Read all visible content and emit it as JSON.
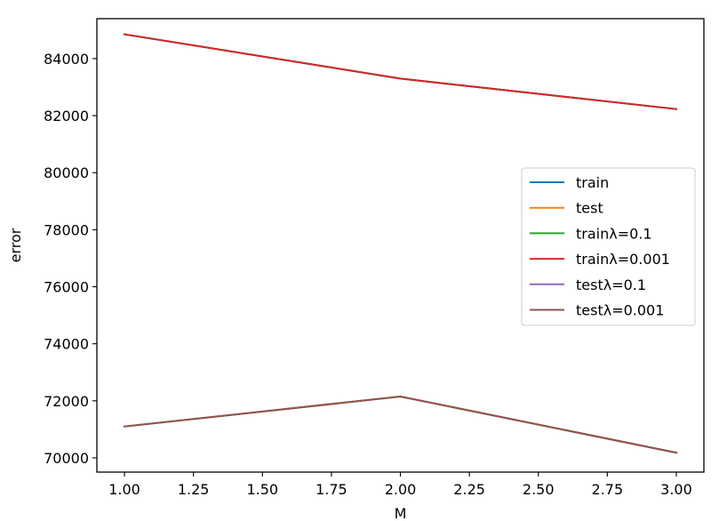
{
  "chart_data": {
    "type": "line",
    "title": "",
    "xlabel": "M",
    "ylabel": "error",
    "x": [
      1,
      2,
      3
    ],
    "xlim": [
      0.9,
      3.1
    ],
    "ylim": [
      69500,
      85400
    ],
    "xticks": [
      1.0,
      1.25,
      1.5,
      1.75,
      2.0,
      2.25,
      2.5,
      2.75,
      3.0
    ],
    "xtick_labels": [
      "1.00",
      "1.25",
      "1.50",
      "1.75",
      "2.00",
      "2.25",
      "2.50",
      "2.75",
      "3.00"
    ],
    "yticks": [
      70000,
      72000,
      74000,
      76000,
      78000,
      80000,
      82000,
      84000
    ],
    "ytick_labels": [
      "70000",
      "72000",
      "74000",
      "76000",
      "78000",
      "80000",
      "82000",
      "84000"
    ],
    "grid": false,
    "legend_position": "center-right",
    "series": [
      {
        "name": "train",
        "color": "#1f77b4",
        "values": [
          84850,
          83300,
          82230
        ]
      },
      {
        "name": "test",
        "color": "#ff7f0e",
        "values": [
          71100,
          72150,
          70180
        ]
      },
      {
        "name": "trainλ=0.1",
        "color": "#2ca02c",
        "values": [
          84850,
          83300,
          82230
        ]
      },
      {
        "name": "trainλ=0.001",
        "color": "#d62728",
        "values": [
          84850,
          83300,
          82230
        ]
      },
      {
        "name": "testλ=0.1",
        "color": "#9467bd",
        "values": [
          71100,
          72150,
          70180
        ]
      },
      {
        "name": "testλ=0.001",
        "color": "#8c564b",
        "values": [
          71100,
          72150,
          70180
        ]
      }
    ]
  }
}
